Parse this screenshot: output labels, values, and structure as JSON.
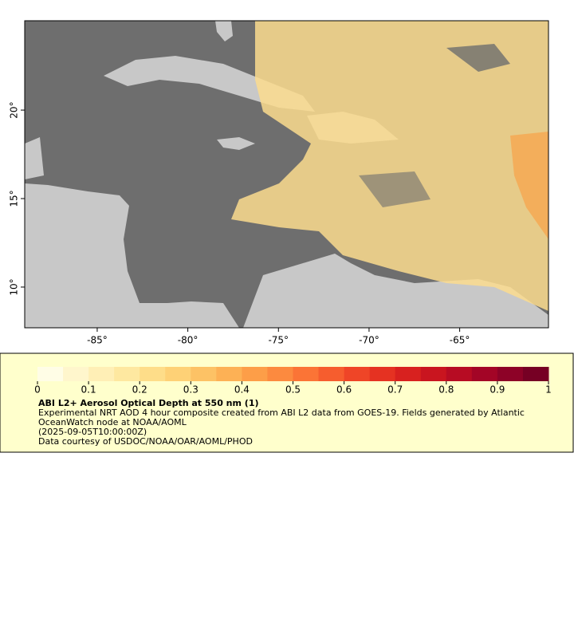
{
  "map": {
    "xlim": [
      -89.0,
      -60.1
    ],
    "ylim": [
      7.7,
      25.05
    ],
    "xticks": [
      {
        "value": -85,
        "label": "-85°"
      },
      {
        "value": -80,
        "label": "-80°"
      },
      {
        "value": -75,
        "label": "-75°"
      },
      {
        "value": -70,
        "label": "-70°"
      },
      {
        "value": -65,
        "label": "-65°"
      }
    ],
    "yticks": [
      {
        "value": 10,
        "label": "10°"
      },
      {
        "value": 15,
        "label": "15°"
      },
      {
        "value": 20,
        "label": "20°"
      }
    ]
  },
  "legend": {
    "range": [
      0,
      1
    ],
    "ticks": [
      0,
      0.1,
      0.2,
      0.3,
      0.4,
      0.5,
      0.6,
      0.7,
      0.8,
      0.9,
      1
    ],
    "colors": [
      "#fffde6",
      "#fff6cc",
      "#ffefb6",
      "#fee8a0",
      "#fedd89",
      "#fed176",
      "#fdc265",
      "#fdb155",
      "#fd9e48",
      "#fc8a3f",
      "#fb7436",
      "#f65d2e",
      "#ef4527",
      "#e53222",
      "#d8211f",
      "#c9151f",
      "#b70c23",
      "#a30526",
      "#8d0227",
      "#760024"
    ],
    "title": "ABI L2+ Aerosol Optical Depth at 550 nm (1)",
    "description": "Experimental NRT AOD 4 hour composite created from ABI L2 data from GOES-19. Fields generated by Atlantic OceanWatch node at NOAA/AOML",
    "time": "(2025-09-05T10:00:00Z)",
    "credit": "Data courtesy of USDOC/NOAA/OAR/AOML/PHOD"
  }
}
